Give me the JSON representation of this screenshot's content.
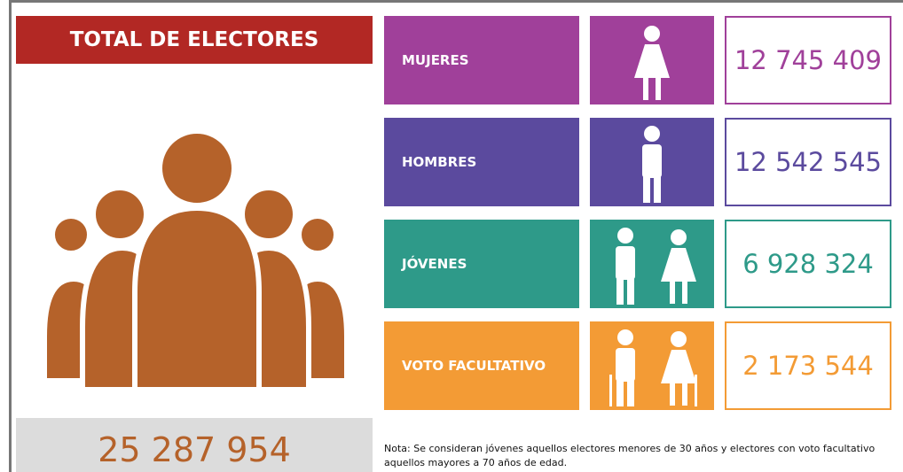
{
  "title": "TOTAL DE ELECTORES",
  "total": "25 287 954",
  "rows": [
    {
      "label": "MUJERES",
      "value": "12 745 409"
    },
    {
      "label": "HOMBRES",
      "value": "12 542 545"
    },
    {
      "label": "JÓVENES",
      "value": "6 928 324"
    },
    {
      "label": "VOTO FACULTATIVO",
      "value": "2 173 544"
    }
  ],
  "note": [
    "Nota: Se consideran jóvenes aquellos electores menores de 30 años y electores con voto facultativo",
    "aquellos mayores a 70 años de edad."
  ]
}
